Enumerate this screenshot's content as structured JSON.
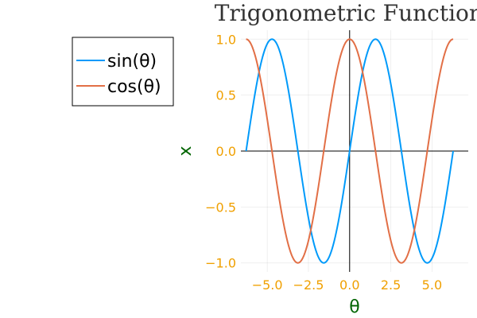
{
  "chart_data": {
    "type": "line",
    "title": "Trigonometric Functions",
    "xlabel": "θ",
    "ylabel": "x",
    "xlim": [
      -6.6,
      7.2
    ],
    "ylim": [
      -1.08,
      1.08
    ],
    "xticks": [
      -5.0,
      -2.5,
      0.0,
      2.5,
      5.0
    ],
    "xtick_labels": [
      "−5.0",
      "−2.5",
      "0.0",
      "2.5",
      "5.0"
    ],
    "yticks": [
      -1.0,
      -0.5,
      0.0,
      0.5,
      1.0
    ],
    "ytick_labels": [
      "−1.0",
      "−0.5",
      "0.0",
      "0.5",
      "1.0"
    ],
    "grid": true,
    "zero_axes": true,
    "legend_position": "outer-top-left",
    "x_range": [
      -6.283,
      6.283
    ],
    "samples": 200,
    "series": [
      {
        "name": "sin(θ)",
        "function": "sin",
        "color": "#009AFA"
      },
      {
        "name": "cos(θ)",
        "function": "cos",
        "color": "#E26F46"
      }
    ]
  }
}
